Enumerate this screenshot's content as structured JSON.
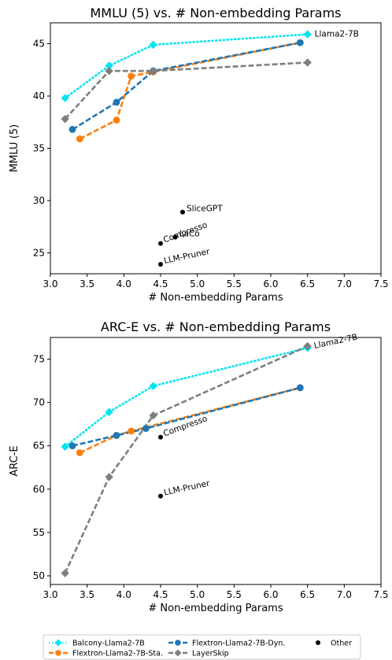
{
  "chart_data": [
    {
      "type": "line",
      "title": "MMLU (5) vs. # Non-embedding Params",
      "xlabel": "# Non-embedding Params",
      "ylabel": "MMLU (5)",
      "xlim": [
        3.0,
        7.5
      ],
      "ylim": [
        23,
        47
      ],
      "xticks": [
        "3.0",
        "3.5",
        "4.0",
        "4.5",
        "5.0",
        "5.5",
        "6.0",
        "6.5",
        "7.0",
        "7.5"
      ],
      "yticks": [
        "25",
        "30",
        "35",
        "40",
        "45"
      ],
      "grid": false,
      "series": [
        {
          "name": "Balcony-Llama2-7B",
          "color": "#00e5ee",
          "style": "dotted",
          "marker": "diamond",
          "x": [
            3.2,
            3.8,
            4.4,
            6.5
          ],
          "y": [
            39.8,
            42.9,
            44.9,
            45.9
          ]
        },
        {
          "name": "Flextron-Llama2-7B-Sta.",
          "color": "#ff7f0e",
          "style": "dashed",
          "marker": "circle",
          "x": [
            3.4,
            3.9,
            4.1,
            4.4,
            6.4
          ],
          "y": [
            35.9,
            37.7,
            41.9,
            42.3,
            45.1
          ]
        },
        {
          "name": "Flextron-Llama2-7B-Dyn.",
          "color": "#1f77b4",
          "style": "dashed",
          "marker": "circle",
          "x": [
            3.3,
            3.9,
            4.4,
            6.4
          ],
          "y": [
            36.8,
            39.4,
            42.4,
            45.1
          ]
        },
        {
          "name": "LayerSkip",
          "color": "#7f7f7f",
          "style": "dashed",
          "marker": "diamond",
          "x": [
            3.2,
            3.8,
            4.4,
            6.5
          ],
          "y": [
            37.8,
            42.4,
            42.4,
            43.2
          ]
        }
      ],
      "others": [
        {
          "label": "SliceGPT",
          "x": 4.8,
          "y": 28.9,
          "rot": 0
        },
        {
          "label": "Compresso",
          "x": 4.5,
          "y": 25.9,
          "rot": -20
        },
        {
          "label": "LaCo",
          "x": 4.7,
          "y": 26.5,
          "rot": 0
        },
        {
          "label": "LLM-Pruner",
          "x": 4.5,
          "y": 23.9,
          "rot": -12
        }
      ],
      "end_label": {
        "text": "Llama2-7B",
        "x": 6.5,
        "y": 45.9,
        "rot": 0
      }
    },
    {
      "type": "line",
      "title": "ARC-E vs. # Non-embedding Params",
      "xlabel": "# Non-embedding Params",
      "ylabel": "ARC-E",
      "xlim": [
        3.0,
        7.5
      ],
      "ylim": [
        49,
        77.5
      ],
      "xticks": [
        "3.0",
        "3.5",
        "4.0",
        "4.5",
        "5.0",
        "5.5",
        "6.0",
        "6.5",
        "7.0",
        "7.5"
      ],
      "yticks": [
        "50",
        "55",
        "60",
        "65",
        "70",
        "75"
      ],
      "grid": false,
      "series": [
        {
          "name": "Balcony-Llama2-7B",
          "color": "#00e5ee",
          "style": "dotted",
          "marker": "diamond",
          "x": [
            3.2,
            3.8,
            4.4,
            6.5
          ],
          "y": [
            64.9,
            68.9,
            71.9,
            76.3
          ]
        },
        {
          "name": "Flextron-Llama2-7B-Sta.",
          "color": "#ff7f0e",
          "style": "dashed",
          "marker": "circle",
          "x": [
            3.4,
            3.9,
            4.1,
            6.4
          ],
          "y": [
            64.2,
            66.2,
            66.7,
            71.7
          ]
        },
        {
          "name": "Flextron-Llama2-7B-Dyn.",
          "color": "#1f77b4",
          "style": "dashed",
          "marker": "circle",
          "x": [
            3.3,
            3.9,
            4.3,
            6.4
          ],
          "y": [
            65.0,
            66.2,
            67.0,
            71.7
          ]
        },
        {
          "name": "LayerSkip",
          "color": "#7f7f7f",
          "style": "dashed",
          "marker": "diamond",
          "x": [
            3.2,
            3.8,
            4.4,
            6.5
          ],
          "y": [
            50.3,
            61.4,
            68.5,
            76.5
          ]
        }
      ],
      "others": [
        {
          "label": "Compresso",
          "x": 4.5,
          "y": 66.0,
          "rot": -20
        },
        {
          "label": "LLM-Pruner",
          "x": 4.5,
          "y": 59.2,
          "rot": -12
        }
      ],
      "end_label": {
        "text": "Llama2-7B",
        "x": 6.5,
        "y": 76.5,
        "rot": -12
      }
    }
  ],
  "legend": {
    "placement": "bottom",
    "other_label": "Other",
    "other_color": "#000000"
  }
}
